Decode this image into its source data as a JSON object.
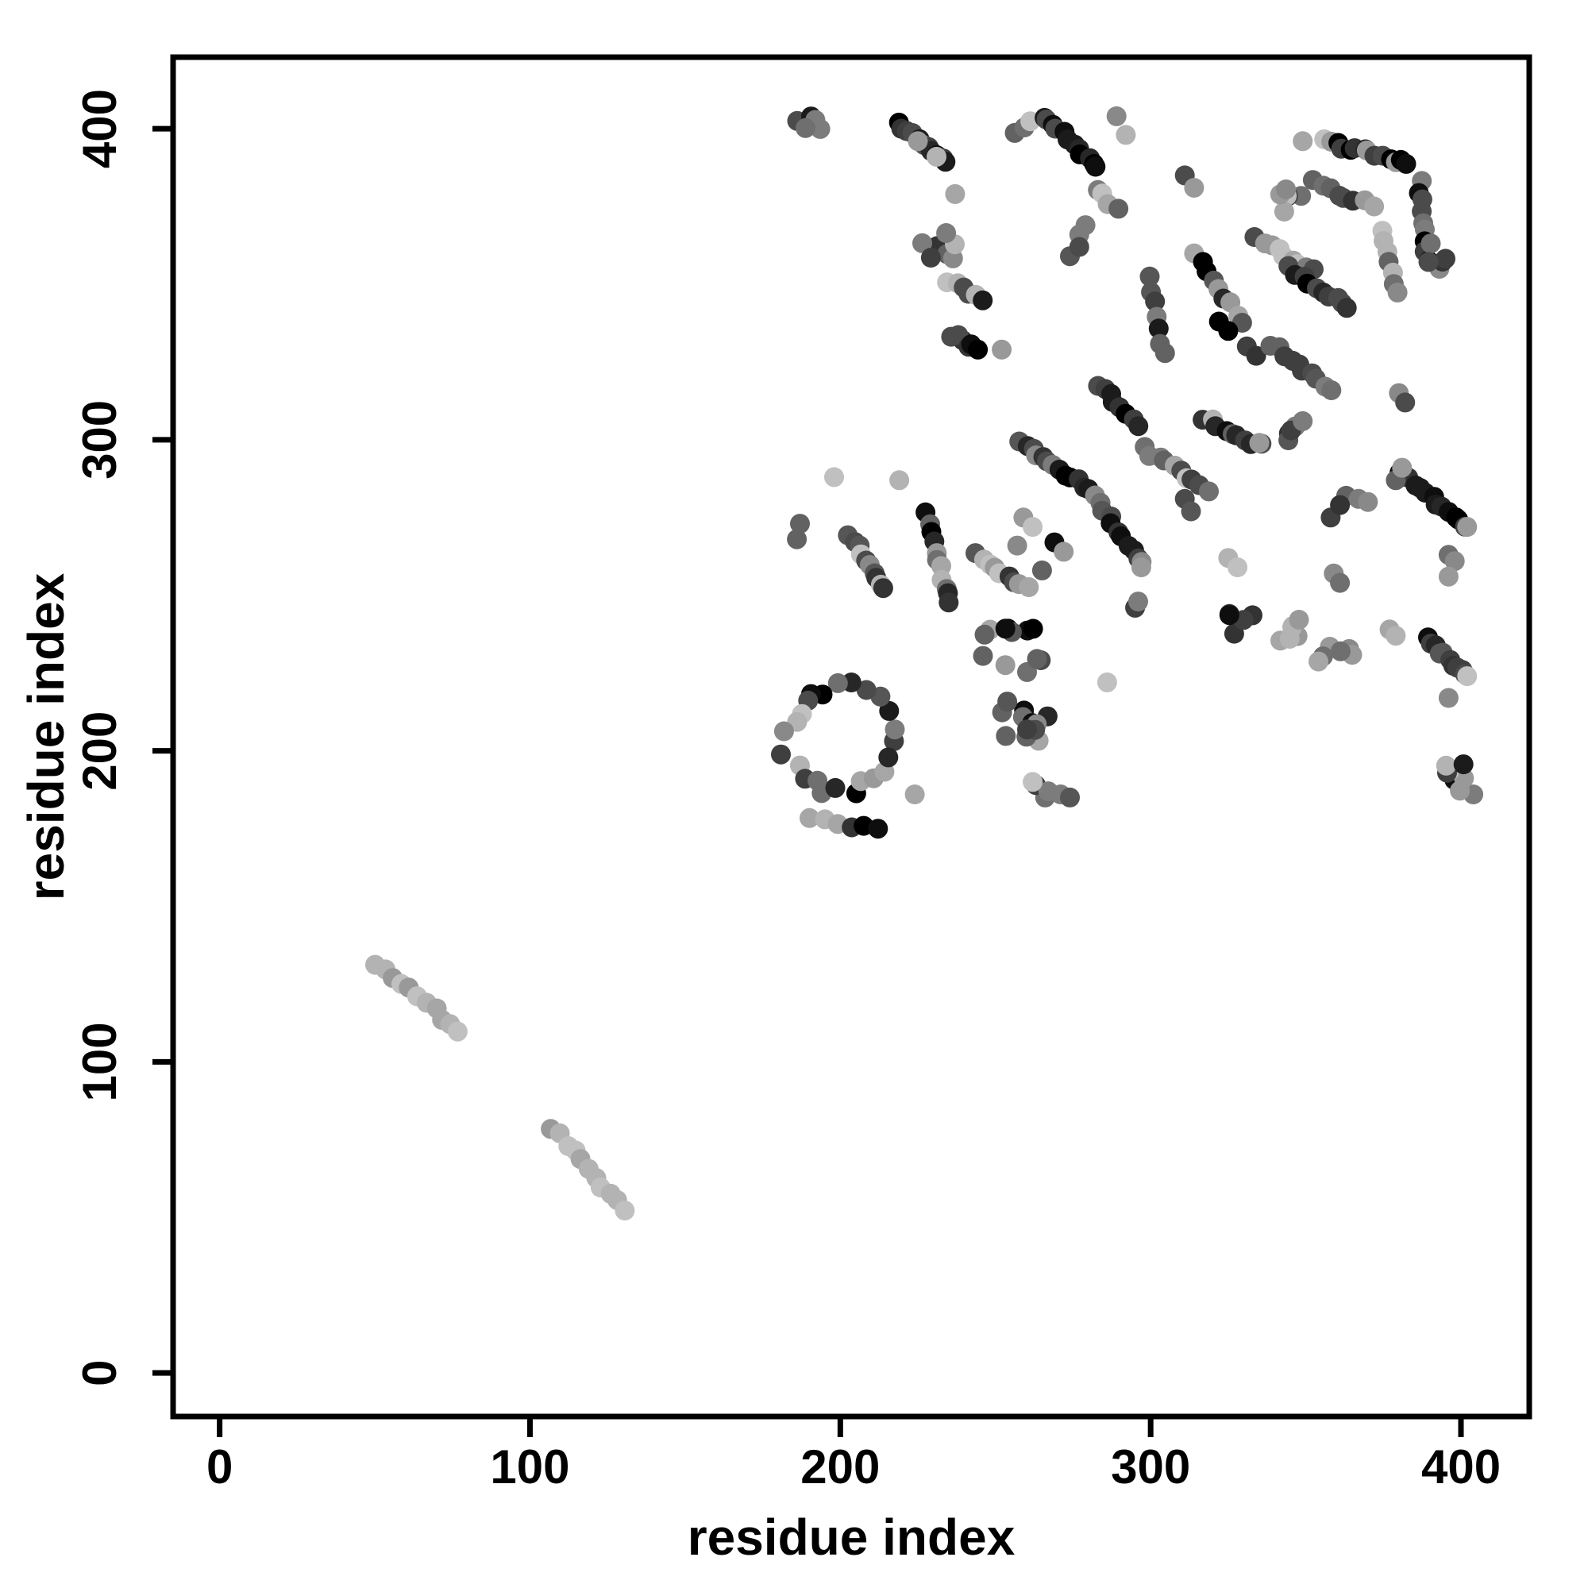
{
  "chart_data": {
    "type": "scatter",
    "title": "",
    "xlabel": "residue index",
    "ylabel": "residue index",
    "x_ticks": [
      "0",
      "100",
      "200",
      "300",
      "400"
    ],
    "y_ticks": [
      "0",
      "100",
      "200",
      "300",
      "400"
    ],
    "x_tick_values": [
      0,
      100,
      200,
      300,
      400
    ],
    "y_tick_values": [
      0,
      100,
      200,
      300,
      400
    ],
    "xlim": [
      -15,
      422
    ],
    "ylim": [
      -14,
      423
    ],
    "grid": false,
    "legend": null,
    "background_color": "#ffffff",
    "axis_color": "#000000",
    "marker": "filled-circle",
    "point_radius_data_units": 3.2,
    "shade_palette": {
      "xd": [
        "#000000",
        "#0e0e0e",
        "#1b1b1b",
        "#272727"
      ],
      "d": [
        "#333333",
        "#3f3f3f",
        "#4b4b4b",
        "#565656"
      ],
      "m": [
        "#626262",
        "#6f6f6f",
        "#7c7c7c",
        "#898989"
      ],
      "l": [
        "#999999",
        "#a6a6a6",
        "#b3b3b3",
        "#c0c0c0"
      ]
    },
    "features": [
      {
        "k": "seg",
        "a": [
          51,
          132
        ],
        "b": [
          77,
          110
        ],
        "n": 11,
        "s": [
          "l"
        ]
      },
      {
        "k": "seg",
        "a": [
          107,
          79
        ],
        "b": [
          130,
          52
        ],
        "n": 11,
        "s": [
          "l"
        ]
      },
      {
        "k": "blob",
        "c": [
          189,
          400
        ],
        "r": [
          5,
          4
        ],
        "n": 6,
        "s": [
          "m",
          "l",
          "xd",
          "d"
        ]
      },
      {
        "k": "seg",
        "a": [
          219,
          402
        ],
        "b": [
          234,
          389
        ],
        "n": 11,
        "s": [
          "xd",
          "xd",
          "d"
        ]
      },
      {
        "k": "dots",
        "p": [
          [
            225,
            396,
            "l"
          ],
          [
            231,
            391,
            "l"
          ],
          [
            237,
            379,
            "l"
          ]
        ]
      },
      {
        "k": "seg",
        "a": [
          256,
          398
        ],
        "b": [
          262,
          402
        ],
        "n": 3,
        "s": [
          "m",
          "l"
        ]
      },
      {
        "k": "seg",
        "a": [
          265,
          404
        ],
        "b": [
          283,
          388
        ],
        "n": 12,
        "s": [
          "xd",
          "d",
          "xd"
        ]
      },
      {
        "k": "seg",
        "a": [
          283,
          381
        ],
        "b": [
          289,
          374
        ],
        "n": 4,
        "s": [
          "m",
          "l"
        ]
      },
      {
        "k": "dots",
        "p": [
          [
            289,
            404,
            "m"
          ],
          [
            292,
            398,
            "l"
          ],
          [
            349,
            396,
            "l"
          ],
          [
            311,
            385,
            "d"
          ],
          [
            314,
            381,
            "l"
          ]
        ]
      },
      {
        "k": "blob",
        "c": [
          231,
          363
        ],
        "r": [
          7,
          5
        ],
        "n": 7,
        "s": [
          "m",
          "l",
          "d"
        ]
      },
      {
        "k": "seg",
        "a": [
          235,
          351
        ],
        "b": [
          246,
          345
        ],
        "n": 6,
        "s": [
          "xd",
          "d",
          "l"
        ]
      },
      {
        "k": "blob",
        "c": [
          239,
          331
        ],
        "r": [
          6,
          3
        ],
        "n": 6,
        "s": [
          "xd",
          "d"
        ]
      },
      {
        "k": "dots",
        "p": [
          [
            252,
            329,
            "l"
          ],
          [
            219,
            287,
            "l"
          ],
          [
            198,
            288,
            "l"
          ],
          [
            186,
            268,
            "m"
          ],
          [
            187,
            273,
            "m"
          ],
          [
            224,
            186,
            "l"
          ],
          [
            404,
            186,
            "m"
          ],
          [
            266,
            185,
            "m"
          ],
          [
            271,
            186,
            "m"
          ],
          [
            274,
            185,
            "d"
          ]
        ]
      },
      {
        "k": "ring",
        "c": [
          200,
          204
        ],
        "r": 17,
        "n": 24,
        "s": [
          "m",
          "l",
          "d",
          "xd"
        ]
      },
      {
        "k": "seg",
        "a": [
          190,
          178
        ],
        "b": [
          212,
          175
        ],
        "n": 6,
        "s": [
          "xd",
          "d",
          "l"
        ]
      },
      {
        "k": "seg",
        "a": [
          203,
          269
        ],
        "b": [
          214,
          252
        ],
        "n": 10,
        "s": [
          "m",
          "l",
          "d"
        ]
      },
      {
        "k": "seg",
        "a": [
          228,
          276
        ],
        "b": [
          235,
          247
        ],
        "n": 11,
        "s": [
          "m",
          "d",
          "l",
          "xd"
        ]
      },
      {
        "k": "seg",
        "a": [
          244,
          263
        ],
        "b": [
          260,
          252
        ],
        "n": 9,
        "s": [
          "xd",
          "d",
          "m",
          "l"
        ]
      },
      {
        "k": "blob",
        "c": [
          254,
          232
        ],
        "r": [
          11,
          8
        ],
        "n": 12,
        "s": [
          "m",
          "d",
          "l",
          "xd"
        ]
      },
      {
        "k": "blob",
        "c": [
          259,
          210
        ],
        "r": [
          8,
          7
        ],
        "n": 12,
        "s": [
          "m",
          "d",
          "l",
          "xd"
        ]
      },
      {
        "k": "dots",
        "p": [
          [
            263,
            189,
            "d"
          ],
          [
            267,
            187,
            "m"
          ],
          [
            262,
            190,
            "l"
          ],
          [
            286,
            222,
            "l"
          ]
        ]
      },
      {
        "k": "seg",
        "a": [
          258,
          299
        ],
        "b": [
          280,
          284
        ],
        "n": 13,
        "s": [
          "xd",
          "xd",
          "d",
          "m"
        ]
      },
      {
        "k": "seg",
        "a": [
          298,
          297
        ],
        "b": [
          318,
          284
        ],
        "n": 10,
        "s": [
          "m",
          "d",
          "l"
        ]
      },
      {
        "k": "seg",
        "a": [
          282,
          282
        ],
        "b": [
          297,
          260
        ],
        "n": 11,
        "s": [
          "xd",
          "d",
          "m"
        ]
      },
      {
        "k": "dots",
        "p": [
          [
            297,
            259,
            "l"
          ],
          [
            295,
            246,
            "d"
          ],
          [
            296,
            248,
            "m"
          ],
          [
            257,
            266,
            "m"
          ],
          [
            265,
            258,
            "m"
          ],
          [
            259,
            275,
            "l"
          ],
          [
            262,
            272,
            "l"
          ],
          [
            269,
            267,
            "xd"
          ],
          [
            272,
            264,
            "l"
          ]
        ]
      },
      {
        "k": "seg",
        "a": [
          283,
          318
        ],
        "b": [
          296,
          304
        ],
        "n": 8,
        "s": [
          "d",
          "xd",
          "l"
        ]
      },
      {
        "k": "dots",
        "p": [
          [
            277,
            366,
            "m"
          ],
          [
            279,
            369,
            "m"
          ],
          [
            274,
            359,
            "d"
          ],
          [
            277,
            362,
            "d"
          ]
        ]
      },
      {
        "k": "seg",
        "a": [
          299,
          352
        ],
        "b": [
          304,
          327
        ],
        "n": 7,
        "s": [
          "d",
          "m",
          "xd"
        ]
      },
      {
        "k": "seg",
        "a": [
          314,
          360
        ],
        "b": [
          330,
          338
        ],
        "n": 9,
        "s": [
          "d",
          "m",
          "l",
          "xd"
        ]
      },
      {
        "k": "seg",
        "a": [
          334,
          365
        ],
        "b": [
          352,
          354
        ],
        "n": 9,
        "s": [
          "m",
          "l",
          "d"
        ]
      },
      {
        "k": "seg",
        "a": [
          345,
          355
        ],
        "b": [
          364,
          342
        ],
        "n": 10,
        "s": [
          "xd",
          "d",
          "l"
        ]
      },
      {
        "k": "dots",
        "p": [
          [
            322,
            338,
            "xd"
          ],
          [
            325,
            335,
            "xd"
          ],
          [
            331,
            330,
            "d"
          ],
          [
            334,
            327,
            "d"
          ],
          [
            380,
            315,
            "m"
          ],
          [
            382,
            312,
            "d"
          ]
        ]
      },
      {
        "k": "seg",
        "a": [
          339,
          331
        ],
        "b": [
          358,
          316
        ],
        "n": 10,
        "s": [
          "m",
          "d",
          "l"
        ]
      },
      {
        "k": "seg",
        "a": [
          317,
          307
        ],
        "b": [
          335,
          298
        ],
        "n": 9,
        "s": [
          "d",
          "xd",
          "l",
          "m"
        ]
      },
      {
        "k": "blob",
        "c": [
          346,
          302
        ],
        "r": [
          4,
          3
        ],
        "n": 4,
        "s": [
          "m",
          "d"
        ]
      },
      {
        "k": "dots",
        "p": [
          [
            335,
            299,
            "l"
          ],
          [
            349,
            306,
            "m"
          ]
        ]
      },
      {
        "k": "seg",
        "a": [
          356,
          396
        ],
        "b": [
          383,
          389
        ],
        "n": 14,
        "s": [
          "m",
          "l",
          "d",
          "xd"
        ]
      },
      {
        "k": "blob",
        "c": [
          345,
          378
        ],
        "r": [
          4,
          5
        ],
        "n": 6,
        "s": [
          "m",
          "d",
          "l"
        ]
      },
      {
        "k": "seg",
        "a": [
          353,
          384
        ],
        "b": [
          365,
          376
        ],
        "n": 6,
        "s": [
          "m",
          "d"
        ]
      },
      {
        "k": "dots",
        "p": [
          [
            369,
            377,
            "l"
          ],
          [
            372,
            375,
            "l"
          ]
        ]
      },
      {
        "k": "seg",
        "a": [
          387,
          383
        ],
        "b": [
          389,
          358
        ],
        "n": 9,
        "s": [
          "m",
          "l",
          "d",
          "xd"
        ]
      },
      {
        "k": "seg",
        "a": [
          375,
          367
        ],
        "b": [
          379,
          347
        ],
        "n": 7,
        "s": [
          "m",
          "l"
        ]
      },
      {
        "k": "blob",
        "c": [
          391,
          359
        ],
        "r": [
          4,
          6
        ],
        "n": 5,
        "s": [
          "d",
          "m"
        ]
      },
      {
        "k": "seg",
        "a": [
          380,
          290
        ],
        "b": [
          401,
          272
        ],
        "n": 13,
        "s": [
          "xd",
          "xd",
          "d"
        ]
      },
      {
        "k": "dots",
        "p": [
          [
            402,
            272,
            "l"
          ],
          [
            379,
            287,
            "m"
          ],
          [
            381,
            291,
            "l"
          ],
          [
            396,
            263,
            "m"
          ],
          [
            398,
            261,
            "m"
          ],
          [
            396,
            256,
            "l"
          ],
          [
            359,
            257,
            "m"
          ],
          [
            361,
            254,
            "m"
          ]
        ]
      },
      {
        "k": "dots",
        "p": [
          [
            363,
            282,
            "m"
          ],
          [
            367,
            281,
            "m"
          ],
          [
            370,
            280,
            "m"
          ],
          [
            358,
            275,
            "d"
          ],
          [
            361,
            279,
            "d"
          ],
          [
            311,
            281,
            "d"
          ],
          [
            313,
            277,
            "d"
          ],
          [
            325,
            262,
            "l"
          ],
          [
            328,
            259,
            "l"
          ]
        ]
      },
      {
        "k": "blob",
        "c": [
          329,
          242
        ],
        "r": [
          4,
          5
        ],
        "n": 5,
        "s": [
          "xd",
          "d"
        ]
      },
      {
        "k": "blob",
        "c": [
          345,
          239
        ],
        "r": [
          6,
          4
        ],
        "n": 6,
        "s": [
          "l",
          "d",
          "m"
        ]
      },
      {
        "k": "blob",
        "c": [
          360,
          233
        ],
        "r": [
          6,
          5
        ],
        "n": 6,
        "s": [
          "m",
          "l"
        ]
      },
      {
        "k": "dots",
        "p": [
          [
            377,
            239,
            "l"
          ],
          [
            379,
            237,
            "l"
          ],
          [
            396,
            217,
            "m"
          ]
        ]
      },
      {
        "k": "seg",
        "a": [
          389,
          236
        ],
        "b": [
          401,
          224
        ],
        "n": 10,
        "s": [
          "xd",
          "d"
        ]
      },
      {
        "k": "dots",
        "p": [
          [
            402,
            224,
            "l"
          ]
        ]
      },
      {
        "k": "blob",
        "c": [
          399,
          192
        ],
        "r": [
          4,
          5
        ],
        "n": 7,
        "s": [
          "l",
          "m",
          "xd",
          "d"
        ]
      }
    ]
  }
}
